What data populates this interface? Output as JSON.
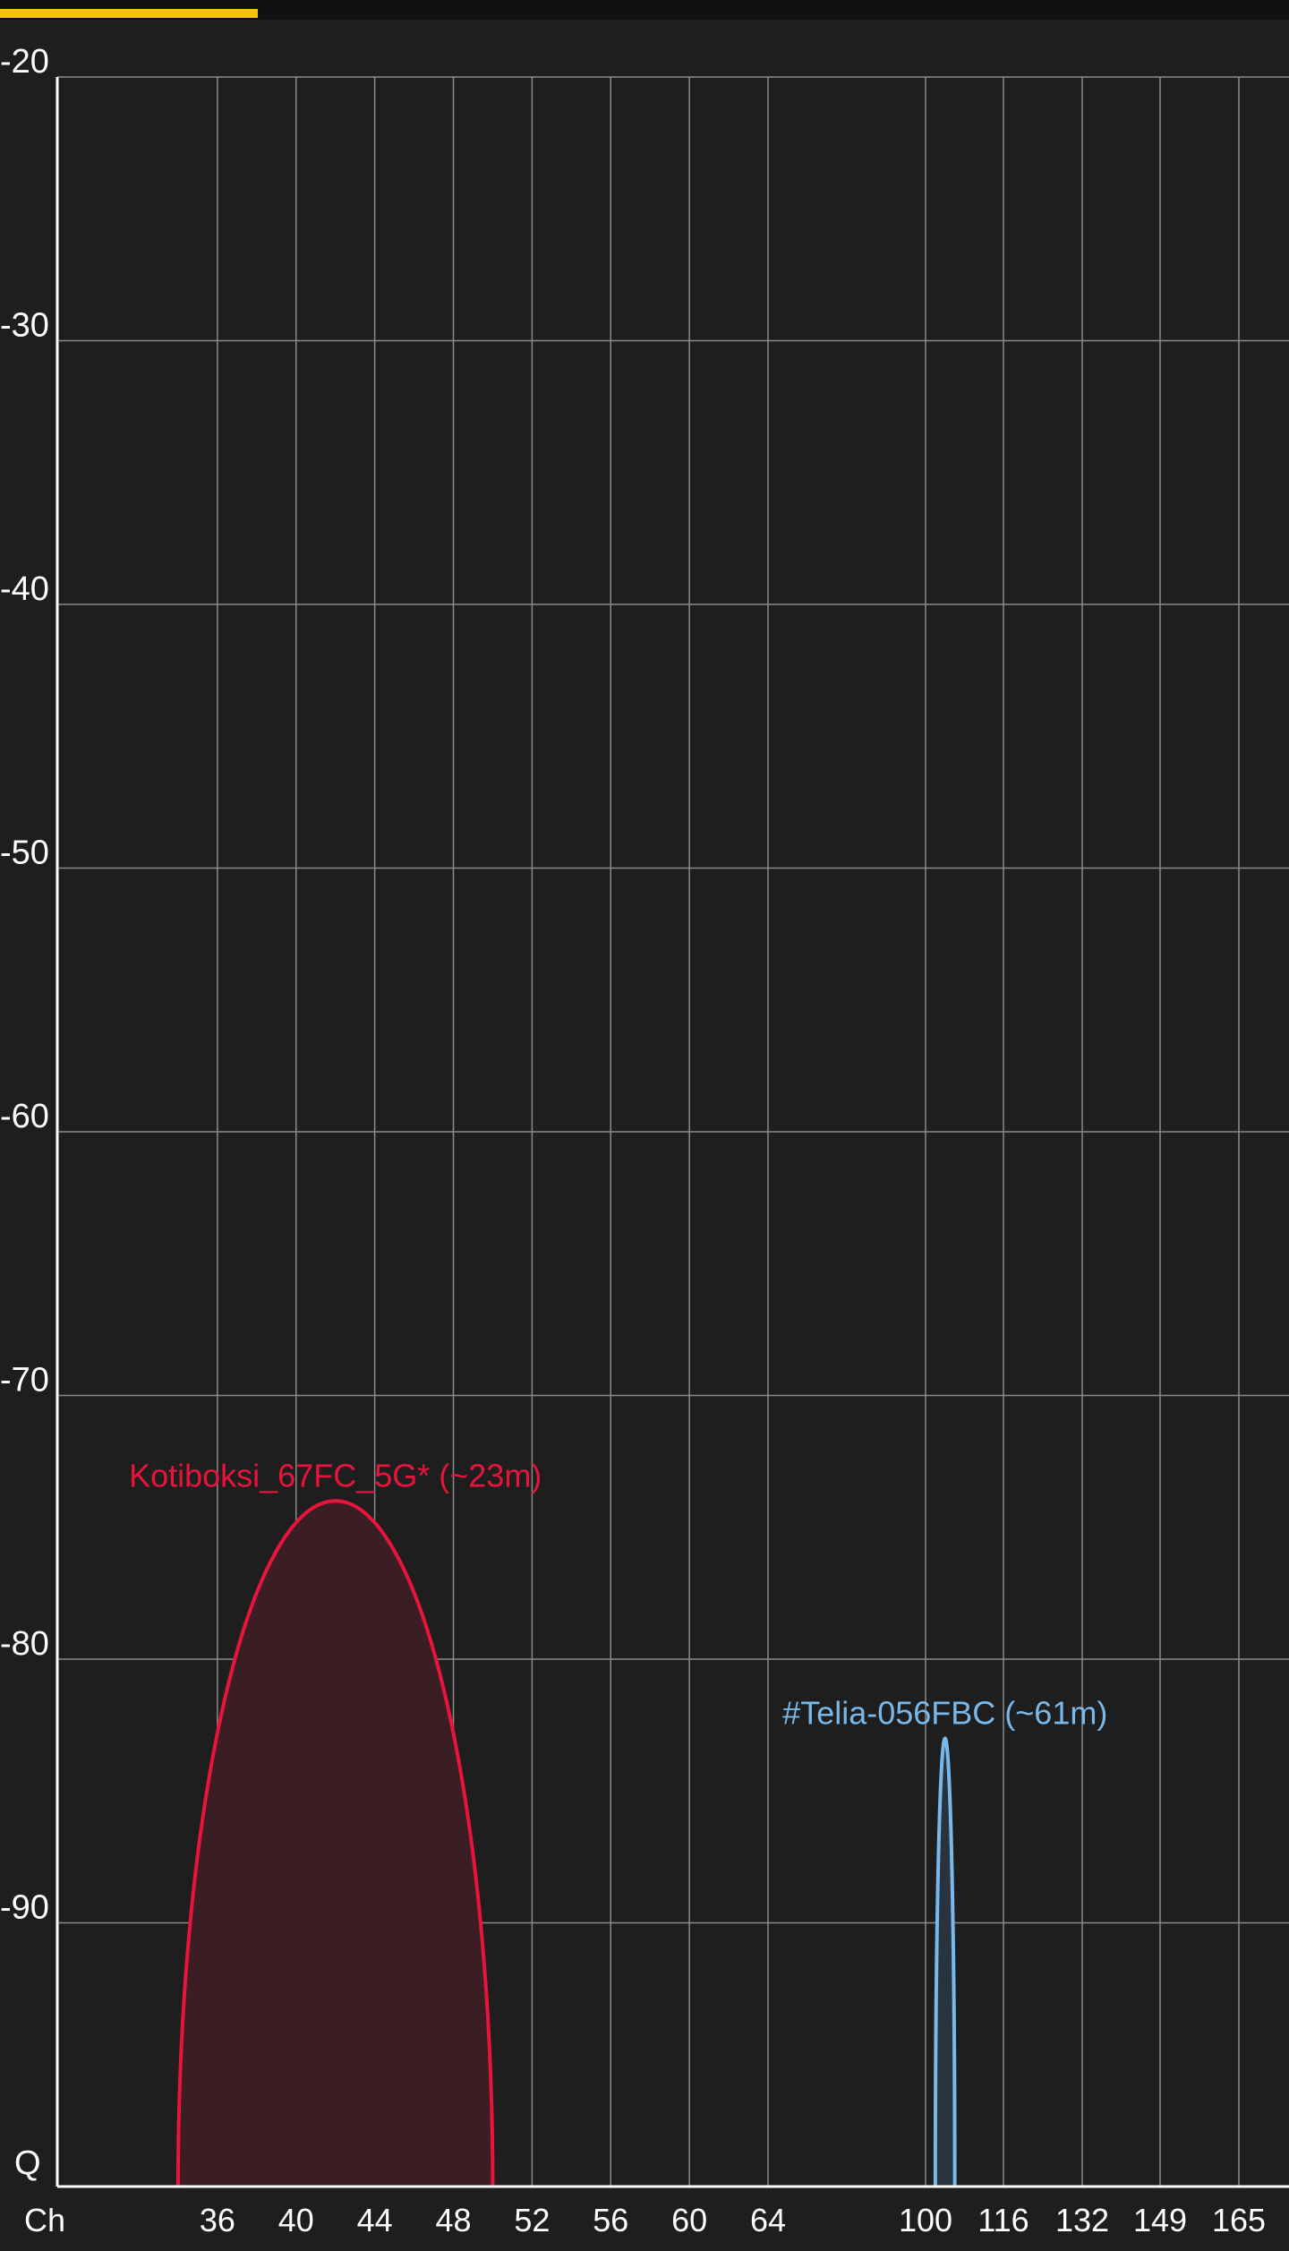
{
  "colors": {
    "background": "#1e1e1e",
    "grid": "#8a8a8a",
    "axis": "#ffffff",
    "progress": "#f2c500"
  },
  "progress_bar": {
    "fraction": 0.2
  },
  "chart_data": {
    "type": "area",
    "title": "",
    "xlabel": "Ch",
    "ylabel": "",
    "ylim": [
      -100,
      -20
    ],
    "y_ticks": [
      -20,
      -30,
      -40,
      -50,
      -60,
      -70,
      -80,
      -90
    ],
    "y_bottom_label": "Q",
    "x_ticks": [
      "36",
      "40",
      "44",
      "48",
      "52",
      "56",
      "60",
      "64",
      "100",
      "116",
      "132",
      "149",
      "165"
    ],
    "grid": true,
    "series": [
      {
        "name": "Kotiboksi_67FC_5G* (~23m)",
        "color": "#e8143c",
        "fill": "#3a1e24",
        "center_channel": 42,
        "start_channel": 34,
        "end_channel": 50,
        "peak_dbm": -74
      },
      {
        "name": "#Telia-056FBC (~61m)",
        "color": "#7ab8ea",
        "fill": "#28333d",
        "center_channel": 104,
        "start_channel": 102,
        "end_channel": 106,
        "peak_dbm": -83
      }
    ]
  }
}
